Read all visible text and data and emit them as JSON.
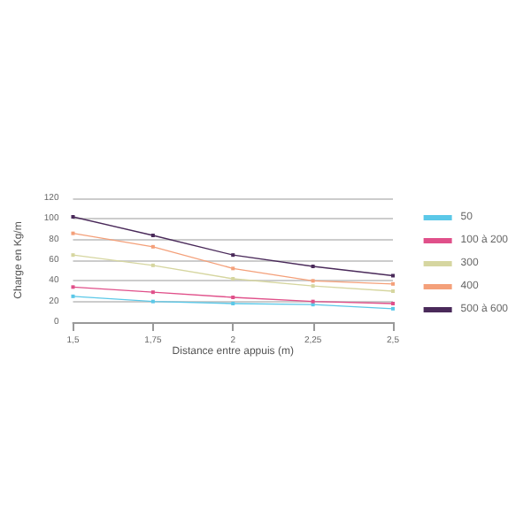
{
  "chart_data": {
    "type": "line",
    "xlabel": "Distance entre appuis (m)",
    "ylabel": "Charge en Kg/m",
    "x": [
      1.5,
      1.75,
      2,
      2.25,
      2.5
    ],
    "xlim": [
      1.5,
      2.5
    ],
    "xticks": [
      {
        "value": 1.5,
        "label": "1,5"
      },
      {
        "value": 1.75,
        "label": "1,75"
      },
      {
        "value": 2,
        "label": "2"
      },
      {
        "value": 2.25,
        "label": "2,25"
      },
      {
        "value": 2.5,
        "label": "2,5"
      }
    ],
    "ylim": [
      0,
      120
    ],
    "yticks": [
      0,
      20,
      40,
      60,
      80,
      100,
      120
    ],
    "grid": "y",
    "legend": "right",
    "marker": "square",
    "line_style": "solid",
    "series": [
      {
        "name": "50",
        "color": "#5bc8e8",
        "values": [
          25,
          20,
          18,
          17,
          13
        ]
      },
      {
        "name": "100 à 200",
        "color": "#e0508a",
        "values": [
          34,
          29,
          24,
          20,
          18
        ]
      },
      {
        "name": "300",
        "color": "#d6d6a0",
        "values": [
          65,
          55,
          42,
          35,
          30
        ]
      },
      {
        "name": "400",
        "color": "#f4a07a",
        "values": [
          86,
          73,
          52,
          40,
          37
        ]
      },
      {
        "name": "500 à 600",
        "color": "#4a2a5a",
        "values": [
          102,
          84,
          65,
          54,
          45
        ]
      }
    ]
  }
}
